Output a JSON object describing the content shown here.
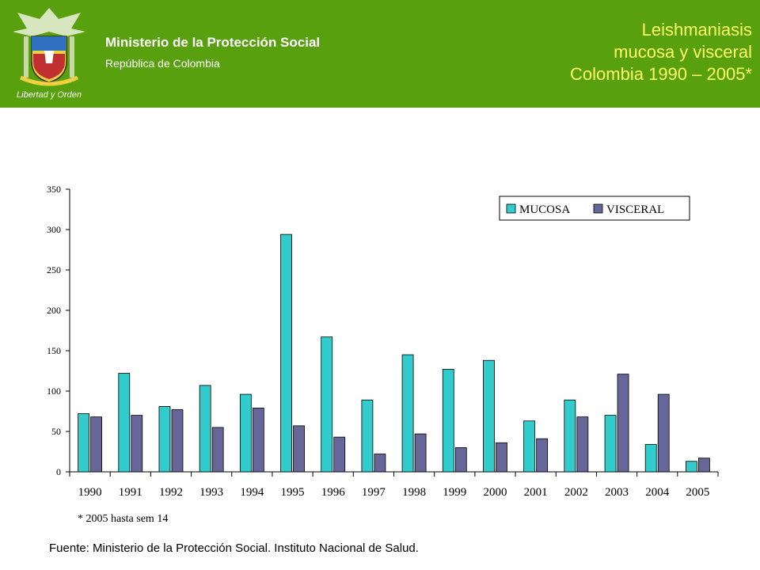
{
  "header": {
    "ministry": "Ministerio de la Protección Social",
    "republic": "República de Colombia",
    "logo_motto": "Libertad y Orden",
    "title_lines": [
      "Leishmaniasis",
      "mucosa y visceral",
      "Colombia 1990 – 2005*"
    ],
    "colors": {
      "background": "#58A00E",
      "title": "#FFFF66",
      "subtitle": "#FFFFFF"
    }
  },
  "chart_data": {
    "type": "bar",
    "categories": [
      "1990",
      "1991",
      "1992",
      "1993",
      "1994",
      "1995",
      "1996",
      "1997",
      "1998",
      "1999",
      "2000",
      "2001",
      "2002",
      "2003",
      "2004",
      "2005"
    ],
    "series": [
      {
        "name": "MUCOSA",
        "color": "#33CCCC",
        "values": [
          72,
          122,
          81,
          107,
          96,
          294,
          167,
          89,
          145,
          127,
          138,
          63,
          89,
          70,
          34,
          13
        ]
      },
      {
        "name": "VISCERAL",
        "color": "#666699",
        "values": [
          68,
          70,
          77,
          55,
          79,
          57,
          43,
          22,
          47,
          30,
          36,
          41,
          68,
          121,
          96,
          17
        ]
      }
    ],
    "yticks": [
      0,
      50,
      100,
      150,
      200,
      250,
      300,
      350
    ],
    "ylim": [
      0,
      350
    ],
    "grid": false,
    "legend_position": "top-right"
  },
  "footnote": "* 2005 hasta sem 14",
  "source": "Fuente: Ministerio de la Protección Social. Instituto Nacional de Salud."
}
